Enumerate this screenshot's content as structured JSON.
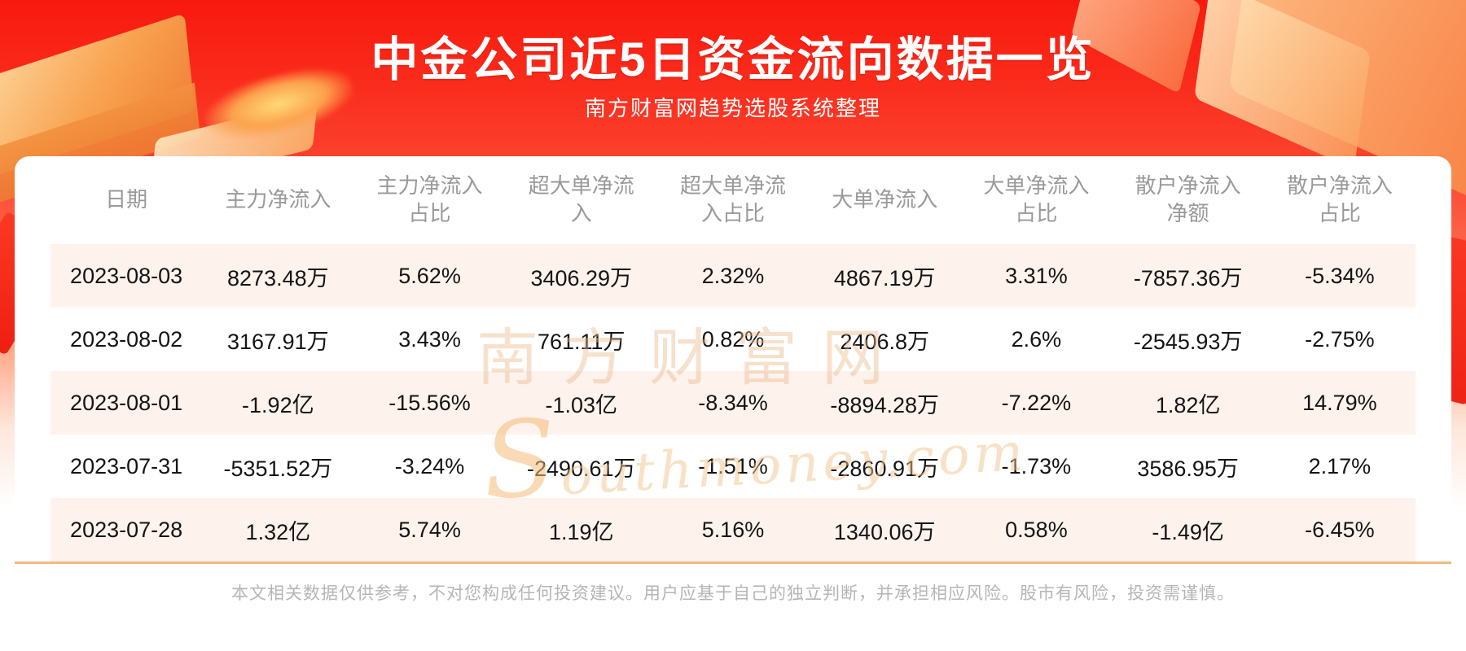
{
  "banner": {
    "title": "中金公司近5日资金流向数据一览",
    "subtitle": "南方财富网趋势选股系统整理"
  },
  "chart_data": {
    "type": "table",
    "title": "中金公司近5日资金流向数据一览",
    "columns": [
      "日期",
      "主力净流入",
      "主力净流入占比",
      "超大单净流入",
      "超大单净流入占比",
      "大单净流入",
      "大单净流入占比",
      "散户净流入净额",
      "散户净流入占比"
    ],
    "rows": [
      [
        "2023-08-03",
        "8273.48万",
        "5.62%",
        "3406.29万",
        "2.32%",
        "4867.19万",
        "3.31%",
        "-7857.36万",
        "-5.34%"
      ],
      [
        "2023-08-02",
        "3167.91万",
        "3.43%",
        "761.11万",
        "0.82%",
        "2406.8万",
        "2.6%",
        "-2545.93万",
        "-2.75%"
      ],
      [
        "2023-08-01",
        "-1.92亿",
        "-15.56%",
        "-1.03亿",
        "-8.34%",
        "-8894.28万",
        "-7.22%",
        "1.82亿",
        "14.79%"
      ],
      [
        "2023-07-31",
        "-5351.52万",
        "-3.24%",
        "-2490.61万",
        "-1.51%",
        "-2860.91万",
        "-1.73%",
        "3586.95万",
        "2.17%"
      ],
      [
        "2023-07-28",
        "1.32亿",
        "5.74%",
        "1.19亿",
        "5.16%",
        "1340.06万",
        "0.58%",
        "-1.49亿",
        "-6.45%"
      ]
    ]
  },
  "watermark": {
    "cn": "南方财富网",
    "en": "Southmoney.com"
  },
  "footer": {
    "disclaimer": "本文相关数据仅供参考，不对您构成任何投资建议。用户应基于自己的独立判断，并承担相应风险。股市有风险，投资需谨慎。"
  },
  "colors": {
    "banner_red_top": "#f8190e",
    "banner_red_mid": "#fb4530",
    "stripe_row_bg": "#fdf2ec",
    "divider_orange": "#f2ba80",
    "header_text": "#999999",
    "cell_text": "#141414",
    "footer_text": "#b5b5b5",
    "title_text": "#ffffff"
  }
}
